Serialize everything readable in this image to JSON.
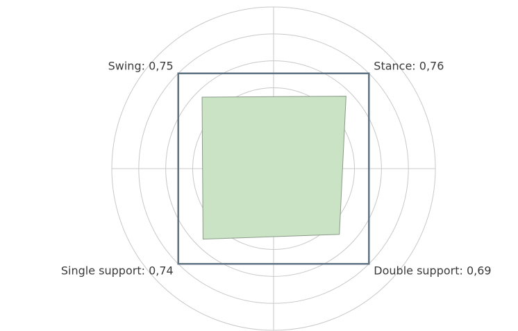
{
  "chart_data": {
    "type": "radar",
    "categories": [
      "Stance",
      "Double support",
      "Single support",
      "Swing"
    ],
    "series": [
      {
        "color": "#c9e3c4",
        "values": [
          0.76,
          0.69,
          0.74,
          0.75
        ],
        "value_labels": [
          "0,76",
          "0,69",
          "0,74",
          "0,75"
        ]
      },
      {
        "color": "#5f7282",
        "values": [
          1,
          1,
          1,
          1
        ]
      }
    ],
    "rlim": [
      0,
      1.2
    ],
    "rticks": [
      0.2,
      0.4,
      0.6,
      0.8,
      1,
      1.2
    ],
    "grid": true
  }
}
